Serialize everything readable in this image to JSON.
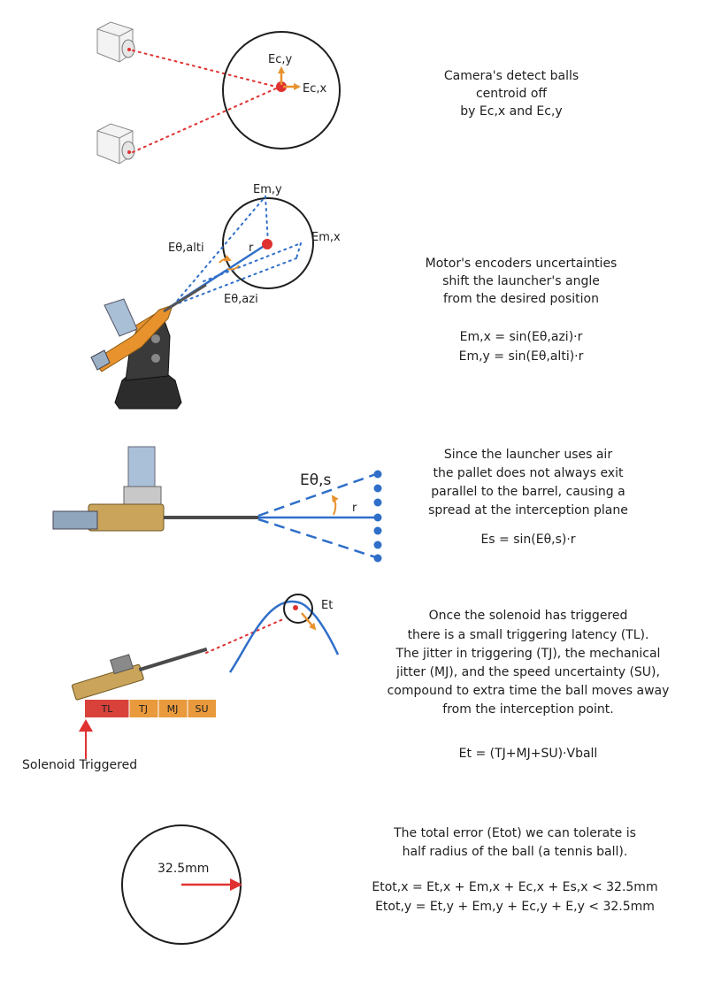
{
  "colors": {
    "error_red": "#e03131",
    "arrow_orange": "#e8922e",
    "sight_blue": "#2f6fc9",
    "solenoid_tl": "#d9413b",
    "solenoid_other": "#e89a3c",
    "ink": "#1e1e1e"
  },
  "section1": {
    "label_ec_y": "Ec,y",
    "label_ec_x": "Ec,x",
    "note": [
      "Camera's detect balls",
      "centroid off",
      "by Ec,x and Ec,y"
    ]
  },
  "section2": {
    "label_em_y": "Em,y",
    "label_em_x": "Em,x",
    "label_alti": "Eθ,alti",
    "label_azi": "Eθ,azi",
    "label_r": "r",
    "note": [
      "Motor's encoders uncertainties",
      "shift the launcher's angle",
      "from the desired position"
    ],
    "formula_x": "Em,x = sin(Eθ,azi)·r",
    "formula_y": "Em,y = sin(Eθ,alti)·r"
  },
  "section3": {
    "label_spread": "Eθ,s",
    "label_r": "r",
    "note": [
      "Since the launcher uses air",
      "the pallet does not always exit",
      "parallel to the barrel, causing a",
      "spread at the interception plane"
    ],
    "formula": "Es = sin(Eθ,s)·r"
  },
  "section4": {
    "label_et": "Et",
    "segments": [
      "TL",
      "TJ",
      "MJ",
      "SU"
    ],
    "trigger_label": "Solenoid Triggered",
    "note": [
      "Once the solenoid has triggered",
      "there is a small triggering latency (TL).",
      "The jitter in triggering (TJ), the mechanical",
      "jitter (MJ), and the speed uncertainty (SU),",
      "compound to extra time the ball moves away",
      "from the interception point."
    ],
    "formula": "Et = (TJ+MJ+SU)·Vball"
  },
  "section5": {
    "radius_label": "32.5mm",
    "note": [
      "The total error (Etot) we can tolerate is",
      "half radius of the ball (a tennis ball)."
    ],
    "formula_x": "Etot,x = Et,x + Em,x + Ec,x + Es,x < 32.5mm",
    "formula_y": "Etot,y = Et,y + Em,y + Ec,y + E,y < 32.5mm"
  }
}
